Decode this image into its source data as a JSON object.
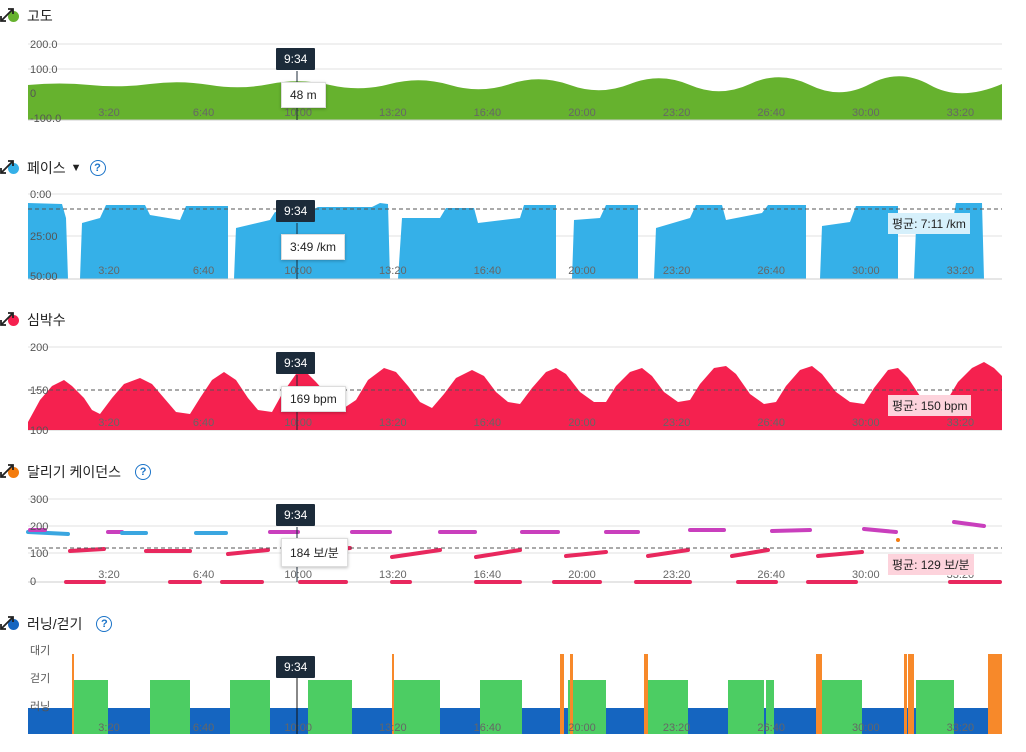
{
  "time_ticks": [
    "3:20",
    "6:40",
    "10:00",
    "13:20",
    "16:40",
    "20:00",
    "23:20",
    "26:40",
    "30:00",
    "33:20"
  ],
  "cursor_time": "9:34",
  "colors": {
    "altitude": "#66b22e",
    "pace": "#35b0e8",
    "heart": "#f5214f",
    "cadence_dot": "#f47c0e",
    "cadence_pink": "#e8285e",
    "cadence_purple": "#c93fbd",
    "cadence_blue": "#3aa6e0",
    "run": "#1565c0",
    "walk": "#4ccd63",
    "idle": "#f7892a",
    "runwalk_dot": "#1565c0"
  },
  "altitude": {
    "title": "고도",
    "y_labels": [
      "200.0",
      "100.0",
      "0",
      "-100.0"
    ],
    "tooltip": "48 m"
  },
  "pace": {
    "title": "페이스",
    "y_labels": [
      "0:00",
      "25:00",
      "50:00"
    ],
    "tooltip": "3:49 /km",
    "average": "평균: 7:11 /km"
  },
  "heart": {
    "title": "심박수",
    "y_labels": [
      "200",
      "150",
      "100"
    ],
    "tooltip": "169 bpm",
    "average": "평균: 150 bpm"
  },
  "cadence": {
    "title": "달리기 케이던스",
    "y_labels": [
      "300",
      "200",
      "100",
      "0"
    ],
    "tooltip": "184 보/분",
    "average": "평균: 129 보/분"
  },
  "runwalk": {
    "title": "러닝/걷기",
    "y_labels": [
      "대기",
      "걷기",
      "러닝"
    ]
  }
}
